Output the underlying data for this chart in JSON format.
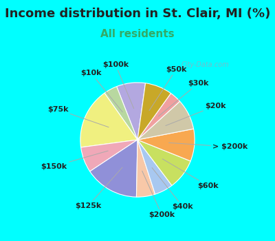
{
  "title": "Income distribution in St. Clair, MI (%)",
  "subtitle": "All residents",
  "title_fontsize": 13,
  "subtitle_fontsize": 11,
  "background_color": "#00FFFF",
  "chart_bg": "#e2f5ec",
  "watermark": "City-Data.com",
  "slices": [
    {
      "label": "$100k",
      "value": 8.5,
      "color": "#b3a8e0"
    },
    {
      "label": "$10k",
      "value": 4.0,
      "color": "#b8d8a0"
    },
    {
      "label": "$75k",
      "value": 18.0,
      "color": "#f0f080"
    },
    {
      "label": "$150k",
      "value": 7.5,
      "color": "#f0a8b8"
    },
    {
      "label": "$125k",
      "value": 16.0,
      "color": "#9090d8"
    },
    {
      "label": "$200k",
      "value": 5.5,
      "color": "#f8c8a8"
    },
    {
      "label": "$40k",
      "value": 5.5,
      "color": "#a8c8f0"
    },
    {
      "label": "$60k",
      "value": 9.0,
      "color": "#c8e060"
    },
    {
      "label": "> $200k",
      "value": 9.5,
      "color": "#f8a850"
    },
    {
      "label": "$20k",
      "value": 9.0,
      "color": "#d0c8a8"
    },
    {
      "label": "$30k",
      "value": 3.5,
      "color": "#f0a0a0"
    },
    {
      "label": "$50k",
      "value": 8.0,
      "color": "#c8a828"
    }
  ],
  "label_fontsize": 8,
  "label_color": "#222222",
  "startangle": 82
}
